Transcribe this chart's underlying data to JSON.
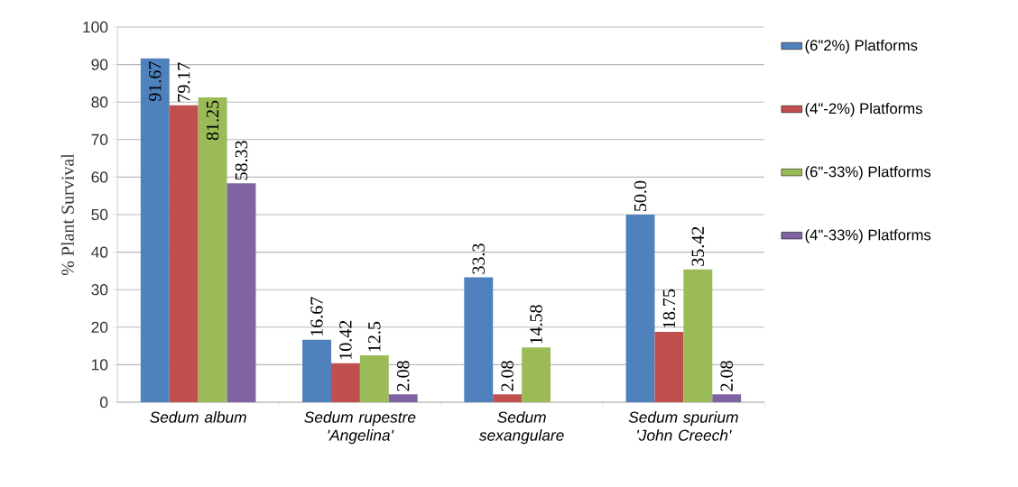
{
  "chart_data": {
    "type": "bar",
    "ylabel": "% Plant Survival",
    "categories": [
      "Sedum album",
      "Sedum rupestre 'Angelina'",
      "Sedum sexangulare",
      "Sedum spurium 'John Creech'"
    ],
    "series": [
      {
        "name": "(6\"2%) Platforms",
        "color": "#4f81bd",
        "values": [
          91.67,
          16.67,
          33.3,
          50.0
        ],
        "value_labels": [
          "91.67",
          "16.67",
          "33.3",
          "50.0"
        ]
      },
      {
        "name": "(4\"-2%) Platforms",
        "color": "#c0504d",
        "values": [
          79.17,
          10.42,
          2.08,
          18.75
        ],
        "value_labels": [
          "79.17",
          "10.42",
          "2.08",
          "18.75"
        ]
      },
      {
        "name": "(6\"-33%) Platforms",
        "color": "#9bbb59",
        "values": [
          81.25,
          12.5,
          14.58,
          35.42
        ],
        "value_labels": [
          "81.25",
          "12.5",
          "14.58",
          "35.42"
        ]
      },
      {
        "name": "(4\"-33%) Platforms",
        "color": "#8064a2",
        "values": [
          58.33,
          2.08,
          null,
          2.08
        ],
        "value_labels": [
          "58.33",
          "2.08",
          null,
          "2.08"
        ]
      }
    ],
    "ylim": [
      0,
      100
    ],
    "yticks": [
      0,
      10,
      20,
      30,
      40,
      50,
      60,
      70,
      80,
      90,
      100
    ],
    "grid": "y",
    "legend": "right"
  }
}
